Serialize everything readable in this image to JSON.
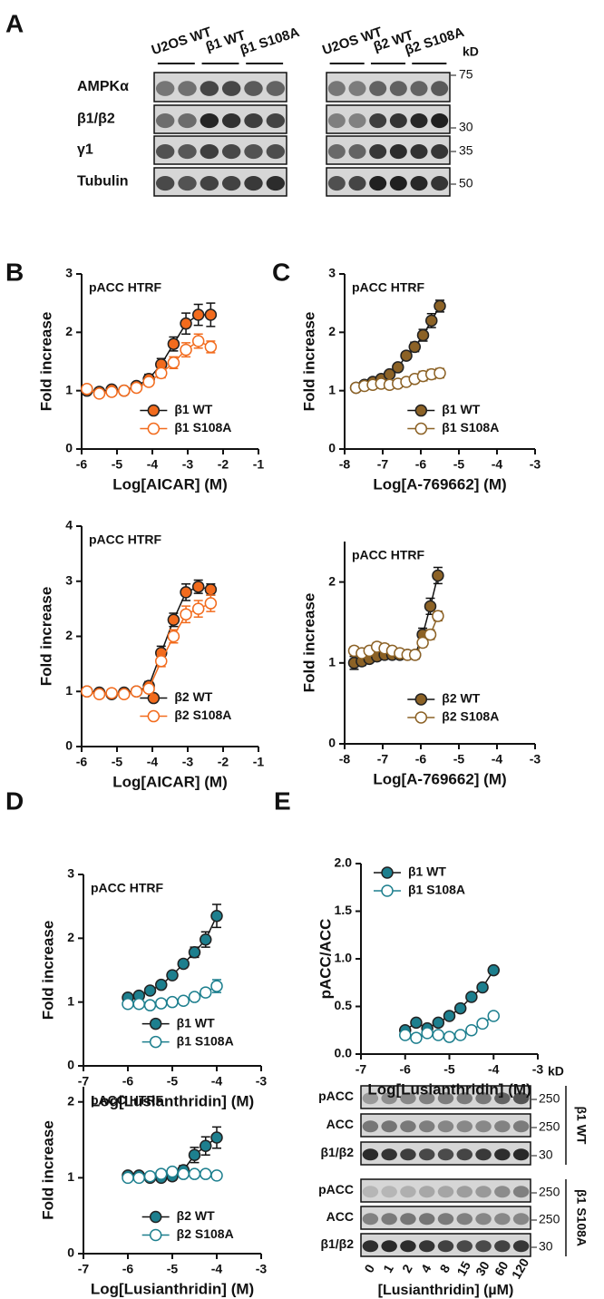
{
  "panels": [
    "A",
    "B",
    "C",
    "D",
    "E"
  ],
  "blots_A": {
    "groups": [
      {
        "lanes": [
          "U2OS WT",
          "β1 WT",
          "β1 S108A"
        ]
      },
      {
        "lanes": [
          "U2OS WT",
          "β2 WT",
          "β2 S108A"
        ]
      }
    ],
    "rows": [
      "AMPKα",
      "β1/β2",
      "γ1",
      "Tubulin"
    ],
    "kd_unit": "kD",
    "kd": [
      "75",
      "30",
      "35",
      "50"
    ]
  },
  "blots_E": {
    "kd_unit": "kD",
    "lanes": [
      "0",
      "1",
      "2",
      "4",
      "8",
      "15",
      "30",
      "60",
      "120"
    ],
    "x_label": "[Lusianthridin] (µM)",
    "sets": [
      {
        "label": "β1 WT",
        "rows": [
          "pACC",
          "ACC",
          "β1/β2"
        ],
        "kd": [
          "250",
          "250",
          "30"
        ]
      },
      {
        "label": "β1 S108A",
        "rows": [
          "pACC",
          "ACC",
          "β1/β2"
        ],
        "kd": [
          "250",
          "250",
          "30"
        ]
      }
    ]
  },
  "chart_data": [
    {
      "type": "line",
      "title": "pACC HTRF",
      "x_label": "Log[AICAR] (M)",
      "y_label": "Fold increase",
      "xlim": [
        -6,
        -1
      ],
      "xticks": [
        -6,
        -5,
        -4,
        -3,
        -2,
        -1
      ],
      "ylim": [
        0,
        3
      ],
      "yticks": [
        0,
        1,
        2,
        3
      ],
      "legend": "lower right",
      "x": [
        -5.85,
        -5.5,
        -5.15,
        -4.8,
        -4.45,
        -4.1,
        -3.75,
        -3.4,
        -3.05,
        -2.7,
        -2.35
      ],
      "series": [
        {
          "name": "β1 WT",
          "color": "#f26b1d",
          "marker": "filled",
          "values": [
            1.0,
            0.98,
            1.02,
            1.0,
            1.08,
            1.2,
            1.45,
            1.8,
            2.15,
            2.3,
            2.3
          ],
          "errors": [
            0.05,
            0.04,
            0.04,
            0.05,
            0.05,
            0.08,
            0.1,
            0.12,
            0.18,
            0.18,
            0.2
          ]
        },
        {
          "name": "β1 S108A",
          "color": "#f26b1d",
          "marker": "open",
          "values": [
            1.03,
            0.95,
            0.98,
            1.0,
            1.05,
            1.15,
            1.3,
            1.48,
            1.7,
            1.85,
            1.75
          ],
          "errors": [
            0.05,
            0.05,
            0.04,
            0.05,
            0.05,
            0.06,
            0.08,
            0.1,
            0.12,
            0.12,
            0.1
          ]
        }
      ]
    },
    {
      "type": "line",
      "title": "pACC HTRF",
      "x_label": "Log[AICAR] (M)",
      "y_label": "Fold increase",
      "xlim": [
        -6,
        -1
      ],
      "xticks": [
        -6,
        -5,
        -4,
        -3,
        -2,
        -1
      ],
      "ylim": [
        0,
        4
      ],
      "yticks": [
        0,
        1,
        2,
        3,
        4
      ],
      "legend": "lower right",
      "x": [
        -5.85,
        -5.5,
        -5.15,
        -4.8,
        -4.45,
        -4.1,
        -3.75,
        -3.4,
        -3.05,
        -2.7,
        -2.35
      ],
      "series": [
        {
          "name": "β2 WT",
          "color": "#f26b1d",
          "marker": "filled",
          "values": [
            1.0,
            0.98,
            0.95,
            0.98,
            1.0,
            1.1,
            1.7,
            2.3,
            2.8,
            2.9,
            2.85
          ],
          "errors": [
            0.05,
            0.05,
            0.06,
            0.05,
            0.05,
            0.08,
            0.12,
            0.12,
            0.15,
            0.12,
            0.1
          ]
        },
        {
          "name": "β2 S108A",
          "color": "#f26b1d",
          "marker": "open",
          "values": [
            1.0,
            0.95,
            0.97,
            0.95,
            1.0,
            1.05,
            1.55,
            2.0,
            2.4,
            2.5,
            2.6
          ],
          "errors": [
            0.05,
            0.05,
            0.05,
            0.05,
            0.05,
            0.06,
            0.1,
            0.12,
            0.15,
            0.15,
            0.15
          ]
        }
      ]
    },
    {
      "type": "line",
      "title": "pACC HTRF",
      "x_label": "Log[A-769662] (M)",
      "y_label": "Fold increase",
      "xlim": [
        -8,
        -3
      ],
      "xticks": [
        -8,
        -7,
        -6,
        -5,
        -4,
        -3
      ],
      "ylim": [
        0,
        3
      ],
      "yticks": [
        0,
        1,
        2,
        3
      ],
      "legend": "lower right",
      "x": [
        -7.7,
        -7.48,
        -7.26,
        -7.04,
        -6.82,
        -6.6,
        -6.38,
        -6.16,
        -5.94,
        -5.72,
        -5.5
      ],
      "series": [
        {
          "name": "β1 WT",
          "color": "#8c6226",
          "marker": "filled",
          "values": [
            1.05,
            1.1,
            1.15,
            1.2,
            1.28,
            1.4,
            1.6,
            1.75,
            1.95,
            2.2,
            2.45
          ],
          "errors": [
            0.04,
            0.04,
            0.04,
            0.05,
            0.05,
            0.06,
            0.06,
            0.08,
            0.1,
            0.12,
            0.1
          ]
        },
        {
          "name": "β1 S108A",
          "color": "#8c6226",
          "marker": "open",
          "values": [
            1.05,
            1.08,
            1.1,
            1.12,
            1.1,
            1.12,
            1.15,
            1.2,
            1.25,
            1.28,
            1.3
          ],
          "errors": [
            0.04,
            0.04,
            0.04,
            0.04,
            0.04,
            0.05,
            0.05,
            0.06,
            0.08,
            0.08,
            0.08
          ]
        }
      ]
    },
    {
      "type": "line",
      "title": "pACC HTRF",
      "x_label": "Log[A-769662] (M)",
      "y_label": "Fold increase",
      "xlim": [
        -8,
        -3
      ],
      "xticks": [
        -8,
        -7,
        -6,
        -5,
        -4,
        -3
      ],
      "ylim": [
        0,
        2.5
      ],
      "yticks": [
        0,
        1,
        2
      ],
      "legend": "lower right",
      "x": [
        -7.75,
        -7.55,
        -7.35,
        -7.15,
        -6.95,
        -6.75,
        -6.55,
        -6.35,
        -6.15,
        -5.95,
        -5.75,
        -5.55
      ],
      "series": [
        {
          "name": "β2 WT",
          "color": "#8c6226",
          "marker": "filled",
          "values": [
            1.0,
            1.02,
            1.05,
            1.08,
            1.1,
            1.1,
            1.1,
            1.1,
            1.1,
            1.35,
            1.7,
            2.08
          ],
          "errors": [
            0.08,
            0.05,
            0.04,
            0.04,
            0.04,
            0.04,
            0.04,
            0.04,
            0.05,
            0.08,
            0.1,
            0.1
          ]
        },
        {
          "name": "β2 S108A",
          "color": "#8c6226",
          "marker": "open",
          "values": [
            1.15,
            1.12,
            1.15,
            1.2,
            1.18,
            1.15,
            1.12,
            1.1,
            1.1,
            1.25,
            1.35,
            1.58
          ],
          "errors": [
            0.05,
            0.04,
            0.04,
            0.05,
            0.05,
            0.04,
            0.04,
            0.04,
            0.04,
            0.05,
            0.06,
            0.06
          ]
        }
      ]
    },
    {
      "type": "line",
      "title": "pACC HTRF",
      "x_label": "Log[Lusianthridin] (M)",
      "y_label": "Fold increase",
      "xlim": [
        -7,
        -3
      ],
      "xticks": [
        -7,
        -6,
        -5,
        -4,
        -3
      ],
      "ylim": [
        0,
        3
      ],
      "yticks": [
        0,
        1,
        2,
        3
      ],
      "legend": "lower right",
      "x": [
        -6,
        -5.75,
        -5.5,
        -5.25,
        -5,
        -4.75,
        -4.5,
        -4.25,
        -4
      ],
      "series": [
        {
          "name": "β1 WT",
          "color": "#1d7f8e",
          "marker": "filled",
          "values": [
            1.07,
            1.1,
            1.18,
            1.27,
            1.42,
            1.6,
            1.78,
            1.98,
            2.35
          ],
          "errors": [
            0.04,
            0.04,
            0.04,
            0.05,
            0.05,
            0.06,
            0.08,
            0.12,
            0.18
          ]
        },
        {
          "name": "β1 S108A",
          "color": "#1d7f8e",
          "marker": "open",
          "values": [
            0.97,
            0.97,
            0.95,
            0.98,
            1.0,
            1.02,
            1.08,
            1.15,
            1.25
          ],
          "errors": [
            0.04,
            0.04,
            0.04,
            0.04,
            0.04,
            0.04,
            0.05,
            0.06,
            0.1
          ]
        }
      ]
    },
    {
      "type": "line",
      "title": "pACC HTRF",
      "x_label": "Log[Lusianthridin] (M)",
      "y_label": "Fold increase",
      "xlim": [
        -7,
        -3
      ],
      "xticks": [
        -7,
        -6,
        -5,
        -4,
        -3
      ],
      "ylim": [
        0,
        2.2
      ],
      "yticks": [
        0,
        1,
        2
      ],
      "legend": "lower right",
      "x": [
        -6,
        -5.75,
        -5.5,
        -5.25,
        -5,
        -4.75,
        -4.5,
        -4.25,
        -4
      ],
      "series": [
        {
          "name": "β2 WT",
          "color": "#1d7f8e",
          "marker": "filled",
          "values": [
            1.03,
            1.03,
            1.0,
            1.0,
            1.02,
            1.1,
            1.3,
            1.42,
            1.53
          ],
          "errors": [
            0.04,
            0.04,
            0.04,
            0.04,
            0.05,
            0.06,
            0.1,
            0.12,
            0.14
          ]
        },
        {
          "name": "β2 S108A",
          "color": "#1d7f8e",
          "marker": "open",
          "values": [
            1.0,
            1.0,
            1.02,
            1.05,
            1.08,
            1.05,
            1.05,
            1.05,
            1.03
          ],
          "errors": [
            0.04,
            0.04,
            0.04,
            0.04,
            0.04,
            0.04,
            0.04,
            0.04,
            0.04
          ]
        }
      ]
    },
    {
      "type": "line",
      "x_label": "Log[Lusianthridin] (M)",
      "y_label": "pACC/ACC",
      "xlim": [
        -7,
        -3
      ],
      "xticks": [
        -7,
        -6,
        -5,
        -4,
        -3
      ],
      "ylim": [
        0,
        2
      ],
      "yticks": [
        {
          "value": 0,
          "label": "0.0"
        },
        {
          "value": 0.5,
          "label": "0.5"
        },
        {
          "value": 1,
          "label": "1.0"
        },
        {
          "value": 1.5,
          "label": "1.5"
        },
        {
          "value": 2,
          "label": "2.0"
        }
      ],
      "legend": "upper left",
      "x": [
        -6,
        -5.75,
        -5.5,
        -5.25,
        -5,
        -4.75,
        -4.5,
        -4.25,
        -4
      ],
      "series": [
        {
          "name": "β1 WT",
          "color": "#1d7f8e",
          "marker": "filled",
          "values": [
            0.25,
            0.33,
            0.27,
            0.33,
            0.4,
            0.48,
            0.6,
            0.7,
            0.88
          ]
        },
        {
          "name": "β1 S108A",
          "color": "#1d7f8e",
          "marker": "open",
          "values": [
            0.2,
            0.17,
            0.22,
            0.2,
            0.18,
            0.2,
            0.25,
            0.32,
            0.4
          ]
        }
      ]
    }
  ]
}
